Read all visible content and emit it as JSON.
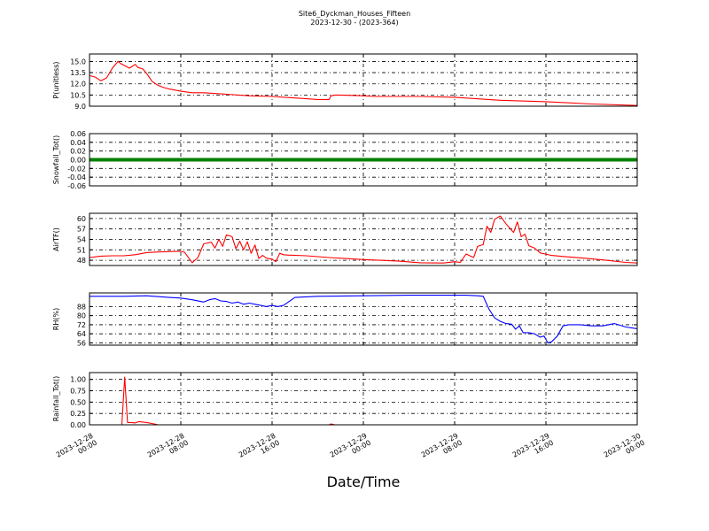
{
  "chart_data": {
    "type": "line",
    "title": "Site6_Dyckman_Houses_Fifteen",
    "subtitle": "2023-12-30 - (2023-364)",
    "xlabel": "Date/Time",
    "x_ticks": [
      "2023-12-28 00:00",
      "2023-12-28 08:00",
      "2023-12-28 16:00",
      "2023-12-29 00:00",
      "2023-12-29 08:00",
      "2023-12-29 16:00",
      "2023-12-30 00:00"
    ],
    "xlim": [
      "2023-12-28 00:00",
      "2023-12-30 00:00"
    ],
    "grid": true,
    "panels": [
      {
        "ylabel": "P(unitless)",
        "ylim": [
          9.0,
          16.0
        ],
        "yticks": [
          "9.0",
          "10.5",
          "12.0",
          "13.5",
          "15.0"
        ],
        "ytick_values": [
          9.0,
          10.5,
          12.0,
          13.5,
          15.0
        ],
        "color": "#ff0000",
        "series": {
          "x": [
            "2023-12-28 00:00",
            "2023-12-28 00:30",
            "2023-12-28 01:00",
            "2023-12-28 01:30",
            "2023-12-28 02:00",
            "2023-12-28 02:30",
            "2023-12-28 02:45",
            "2023-12-28 03:00",
            "2023-12-28 03:30",
            "2023-12-28 04:00",
            "2023-12-28 04:15",
            "2023-12-28 04:40",
            "2023-12-28 05:00",
            "2023-12-28 05:30",
            "2023-12-28 06:00",
            "2023-12-28 06:30",
            "2023-12-28 07:00",
            "2023-12-28 08:00",
            "2023-12-28 09:00",
            "2023-12-28 10:00",
            "2023-12-28 12:00",
            "2023-12-28 14:00",
            "2023-12-28 16:00",
            "2023-12-28 18:00",
            "2023-12-28 20:00",
            "2023-12-28 21:00",
            "2023-12-28 21:10",
            "2023-12-28 21:30",
            "2023-12-28 22:00",
            "2023-12-29 00:00",
            "2023-12-29 01:00",
            "2023-12-29 03:00",
            "2023-12-29 05:00",
            "2023-12-29 08:00",
            "2023-12-29 12:00",
            "2023-12-29 16:00",
            "2023-12-29 20:00",
            "2023-12-30 00:00"
          ],
          "y": [
            13.1,
            12.9,
            12.4,
            12.8,
            14.1,
            15.0,
            14.7,
            14.5,
            14.1,
            14.6,
            14.2,
            14.0,
            13.4,
            12.3,
            11.8,
            11.5,
            11.3,
            11.0,
            10.8,
            10.8,
            10.6,
            10.4,
            10.3,
            10.1,
            9.9,
            9.9,
            10.4,
            10.5,
            10.5,
            10.4,
            10.3,
            10.3,
            10.3,
            10.2,
            9.8,
            9.6,
            9.3,
            9.1
          ]
        }
      },
      {
        "ylabel": "Snowfall_Tot()",
        "ylim": [
          -0.06,
          0.06
        ],
        "yticks": [
          "-0.06",
          "-0.04",
          "-0.02",
          "0.00",
          "0.02",
          "0.04",
          "0.06"
        ],
        "ytick_values": [
          -0.06,
          -0.04,
          -0.02,
          0.0,
          0.02,
          0.04,
          0.06
        ],
        "color": "#008000",
        "series": {
          "x": [
            "2023-12-28 00:00",
            "2023-12-30 00:00"
          ],
          "y": [
            0.0,
            0.0
          ]
        }
      },
      {
        "ylabel": "AirTF()",
        "ylim": [
          46.5,
          61.5
        ],
        "yticks": [
          "48",
          "51",
          "54",
          "57",
          "60"
        ],
        "ytick_values": [
          48,
          51,
          54,
          57,
          60
        ],
        "color": "#ff0000",
        "series": {
          "x": [
            "2023-12-28 00:00",
            "2023-12-28 01:00",
            "2023-12-28 02:00",
            "2023-12-28 03:00",
            "2023-12-28 04:00",
            "2023-12-28 05:00",
            "2023-12-28 06:00",
            "2023-12-28 07:00",
            "2023-12-28 08:00",
            "2023-12-28 08:20",
            "2023-12-28 09:00",
            "2023-12-28 09:30",
            "2023-12-28 10:00",
            "2023-12-28 10:40",
            "2023-12-28 11:00",
            "2023-12-28 11:20",
            "2023-12-28 11:40",
            "2023-12-28 12:00",
            "2023-12-28 12:30",
            "2023-12-28 12:50",
            "2023-12-28 13:10",
            "2023-12-28 13:30",
            "2023-12-28 13:50",
            "2023-12-28 14:10",
            "2023-12-28 14:30",
            "2023-12-28 14:50",
            "2023-12-28 15:10",
            "2023-12-28 15:30",
            "2023-12-28 16:00",
            "2023-12-28 16:20",
            "2023-12-28 16:40",
            "2023-12-28 17:00",
            "2023-12-28 17:20",
            "2023-12-28 19:00",
            "2023-12-28 21:00",
            "2023-12-29 00:00",
            "2023-12-29 03:00",
            "2023-12-29 05:00",
            "2023-12-29 07:00",
            "2023-12-29 08:00",
            "2023-12-29 08:30",
            "2023-12-29 09:00",
            "2023-12-29 09:40",
            "2023-12-29 10:00",
            "2023-12-29 10:30",
            "2023-12-29 10:50",
            "2023-12-29 11:10",
            "2023-12-29 11:30",
            "2023-12-29 12:00",
            "2023-12-29 12:30",
            "2023-12-29 12:50",
            "2023-12-29 13:10",
            "2023-12-29 13:30",
            "2023-12-29 13:50",
            "2023-12-29 14:10",
            "2023-12-29 14:30",
            "2023-12-29 15:00",
            "2023-12-29 15:30",
            "2023-12-29 16:30",
            "2023-12-29 17:30",
            "2023-12-29 19:00",
            "2023-12-29 21:00",
            "2023-12-29 23:00",
            "2023-12-30 00:00"
          ],
          "y": [
            48.8,
            49.2,
            49.3,
            49.3,
            49.6,
            50.2,
            50.4,
            50.5,
            50.6,
            50.3,
            47.3,
            48.8,
            52.7,
            53.2,
            51.5,
            54.0,
            52.0,
            55.3,
            54.8,
            51.3,
            53.5,
            51.0,
            53.3,
            50.0,
            52.4,
            48.5,
            49.4,
            48.6,
            48.3,
            47.6,
            50.0,
            49.6,
            49.5,
            49.3,
            48.8,
            48.2,
            47.8,
            47.3,
            47.2,
            47.6,
            47.4,
            49.8,
            48.8,
            52.0,
            52.5,
            57.8,
            56.0,
            59.8,
            60.7,
            58.5,
            57.2,
            56.0,
            59.0,
            54.8,
            55.5,
            52.2,
            51.5,
            50.1,
            49.4,
            49.1,
            48.7,
            48.1,
            47.4,
            47.2
          ]
        }
      },
      {
        "ylabel": "RH(%)",
        "ylim": [
          54,
          100
        ],
        "yticks": [
          "56",
          "64",
          "72",
          "80",
          "88"
        ],
        "ytick_values": [
          56,
          64,
          72,
          80,
          88
        ],
        "color": "#0000ff",
        "series": {
          "x": [
            "2023-12-28 00:00",
            "2023-12-28 03:00",
            "2023-12-28 05:00",
            "2023-12-28 07:00",
            "2023-12-28 08:00",
            "2023-12-28 09:00",
            "2023-12-28 10:00",
            "2023-12-28 10:30",
            "2023-12-28 11:00",
            "2023-12-28 11:30",
            "2023-12-28 12:00",
            "2023-12-28 12:30",
            "2023-12-28 13:00",
            "2023-12-28 13:30",
            "2023-12-28 14:00",
            "2023-12-28 14:30",
            "2023-12-28 15:00",
            "2023-12-28 15:30",
            "2023-12-28 16:00",
            "2023-12-28 16:30",
            "2023-12-28 17:00",
            "2023-12-28 18:00",
            "2023-12-28 20:00",
            "2023-12-29 00:00",
            "2023-12-29 04:00",
            "2023-12-29 07:00",
            "2023-12-29 09:00",
            "2023-12-29 10:00",
            "2023-12-29 10:30",
            "2023-12-29 11:00",
            "2023-12-29 11:30",
            "2023-12-29 12:00",
            "2023-12-29 12:30",
            "2023-12-29 13:00",
            "2023-12-29 13:20",
            "2023-12-29 13:40",
            "2023-12-29 14:00",
            "2023-12-29 14:30",
            "2023-12-29 15:00",
            "2023-12-29 15:30",
            "2023-12-29 15:50",
            "2023-12-29 16:10",
            "2023-12-29 16:30",
            "2023-12-29 17:00",
            "2023-12-29 17:30",
            "2023-12-29 18:00",
            "2023-12-29 19:00",
            "2023-12-29 20:00",
            "2023-12-29 21:00",
            "2023-12-29 22:00",
            "2023-12-29 23:00",
            "2023-12-30 00:00"
          ],
          "y": [
            97,
            97,
            97.5,
            96,
            95.5,
            94,
            92,
            94,
            95,
            93,
            92.5,
            91,
            92,
            90,
            91,
            90,
            89,
            88,
            89,
            88,
            89,
            96,
            97,
            97.5,
            98,
            98,
            98,
            97.5,
            97,
            86,
            78,
            75,
            73,
            72.5,
            68,
            71,
            65,
            65,
            64,
            61,
            62,
            56,
            57,
            62,
            71,
            72,
            72,
            71,
            71,
            73,
            70,
            68.5
          ]
        }
      },
      {
        "ylabel": "Rainfall_Tot()",
        "ylim": [
          -0.0,
          1.15
        ],
        "yticks": [
          "0.00",
          "0.25",
          "0.50",
          "0.75",
          "1.00"
        ],
        "ytick_values": [
          0.0,
          0.25,
          0.5,
          0.75,
          1.0
        ],
        "color": "#ff0000",
        "series": {
          "x": [
            "2023-12-28 00:00",
            "2023-12-28 02:50",
            "2023-12-28 03:05",
            "2023-12-28 03:20",
            "2023-12-28 03:40",
            "2023-12-28 04:00",
            "2023-12-28 04:20",
            "2023-12-28 05:00",
            "2023-12-28 05:40",
            "2023-12-28 06:00",
            "2023-12-28 08:00",
            "2023-12-28 21:00",
            "2023-12-28 21:10",
            "2023-12-28 21:30",
            "2023-12-30 00:00"
          ],
          "y": [
            0.0,
            0.0,
            1.05,
            0.05,
            0.05,
            0.04,
            0.07,
            0.05,
            0.02,
            0.0,
            0.0,
            0.0,
            0.02,
            0.0,
            0.0
          ]
        }
      }
    ]
  }
}
